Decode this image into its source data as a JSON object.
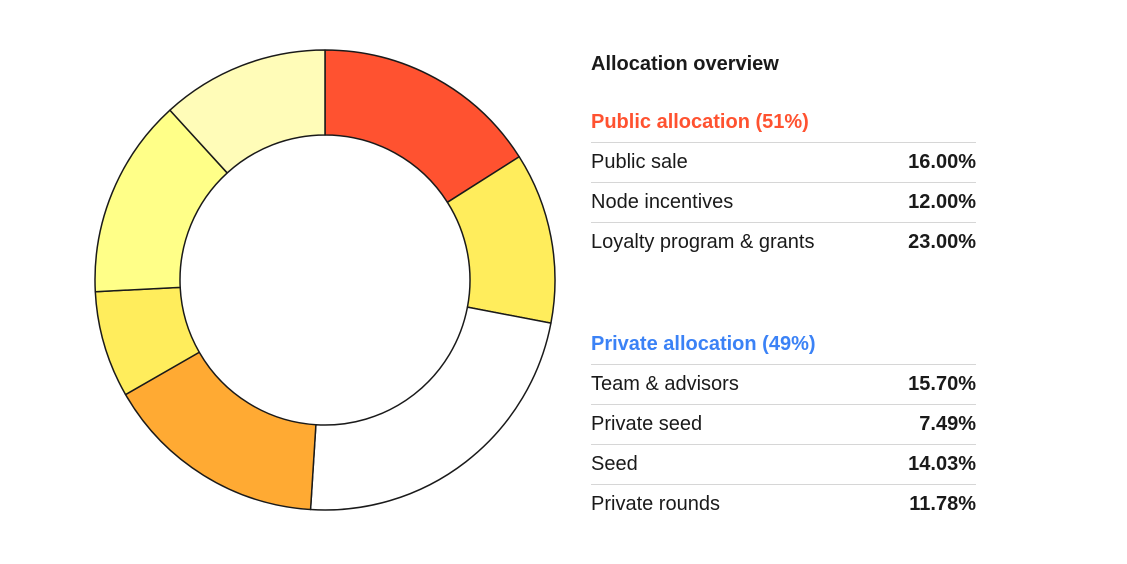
{
  "legend": {
    "title": "Allocation overview",
    "public": {
      "title": "Public allocation (51%)",
      "color": "#ff5230",
      "rows": [
        {
          "label": "Public sale",
          "value": "16.00%"
        },
        {
          "label": "Node incentives",
          "value": "12.00%"
        },
        {
          "label": "Loyalty program & grants",
          "value": "23.00%"
        }
      ]
    },
    "private": {
      "title": "Private allocation (49%)",
      "color": "#3b82f6",
      "rows": [
        {
          "label": "Team & advisors",
          "value": "15.70%"
        },
        {
          "label": "Private seed",
          "value": "7.49%"
        },
        {
          "label": "Seed",
          "value": "14.03%"
        },
        {
          "label": "Private rounds",
          "value": "11.78%"
        }
      ]
    }
  },
  "chart_data": {
    "type": "pie",
    "style": "donut",
    "start": "top",
    "direction": "clockwise",
    "categories": [
      "Public sale",
      "Node incentives",
      "Loyalty program & grants",
      "Team & advisors",
      "Private seed",
      "Seed",
      "Private rounds"
    ],
    "values": [
      16.0,
      12.0,
      23.0,
      15.7,
      7.49,
      14.03,
      11.78
    ],
    "colors": [
      "#ff5230",
      "#ffed5c",
      "#ffffff",
      "#ffaa33",
      "#ffed5c",
      "#ffff88",
      "#fffcb8"
    ],
    "stroke": "#1a1a1a"
  }
}
